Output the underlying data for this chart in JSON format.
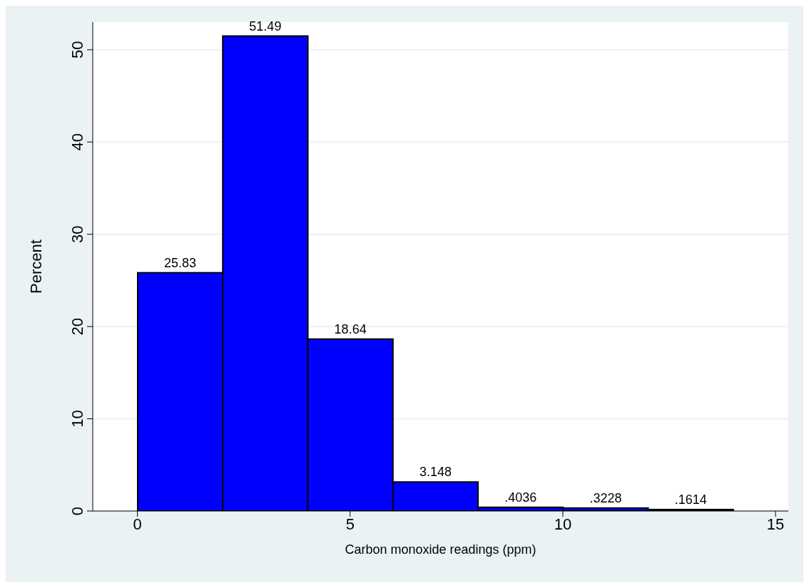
{
  "chart_data": {
    "type": "histogram",
    "xlabel": "Carbon monoxide readings (ppm)",
    "ylabel": "Percent",
    "bins": [
      0,
      2,
      4,
      6,
      8,
      10,
      12,
      14
    ],
    "values": [
      25.83,
      51.49,
      18.64,
      3.148,
      0.4036,
      0.3228,
      0.1614
    ],
    "value_labels": [
      "25.83",
      "51.49",
      "18.64",
      "3.148",
      ".4036",
      ".3228",
      ".1614"
    ],
    "color": "#0000ff",
    "xlim": [
      -1.05,
      15.3
    ],
    "xticks": [
      0,
      5,
      10,
      15
    ],
    "ylim": [
      0,
      53
    ],
    "yticks": [
      0,
      10,
      20,
      30,
      40,
      50
    ],
    "grid": "y",
    "legend": false
  }
}
